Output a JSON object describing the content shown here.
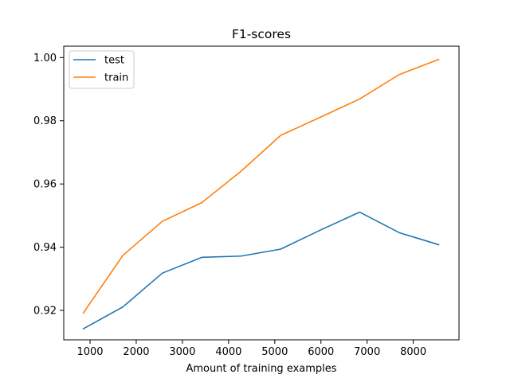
{
  "chart_data": {
    "type": "line",
    "title": "F1-scores",
    "xlabel": "Amount of training examples",
    "ylabel": "",
    "xlim": [
      430,
      8990
    ],
    "ylim": [
      0.9107,
      1.0036
    ],
    "xticks": [
      1000,
      2000,
      3000,
      4000,
      5000,
      6000,
      7000,
      8000
    ],
    "xtick_labels": [
      "1000",
      "2000",
      "3000",
      "4000",
      "5000",
      "6000",
      "7000",
      "8000"
    ],
    "yticks": [
      0.92,
      0.94,
      0.96,
      0.98,
      1.0
    ],
    "ytick_labels": [
      "0.92",
      "0.94",
      "0.96",
      "0.98",
      "1.00"
    ],
    "grid": false,
    "legend_position": "top-left",
    "x": [
      855,
      1710,
      2565,
      3420,
      4275,
      5130,
      5985,
      6840,
      7695,
      8550
    ],
    "series": [
      {
        "name": "test",
        "color": "#1f77b4",
        "values": [
          0.9142,
          0.9211,
          0.9318,
          0.9368,
          0.9372,
          0.9394,
          0.9454,
          0.9511,
          0.9446,
          0.9408
        ]
      },
      {
        "name": "train",
        "color": "#ff7f0e",
        "values": [
          0.9192,
          0.9374,
          0.9482,
          0.9541,
          0.9641,
          0.9754,
          0.9811,
          0.9869,
          0.9946,
          0.9994
        ]
      }
    ]
  }
}
